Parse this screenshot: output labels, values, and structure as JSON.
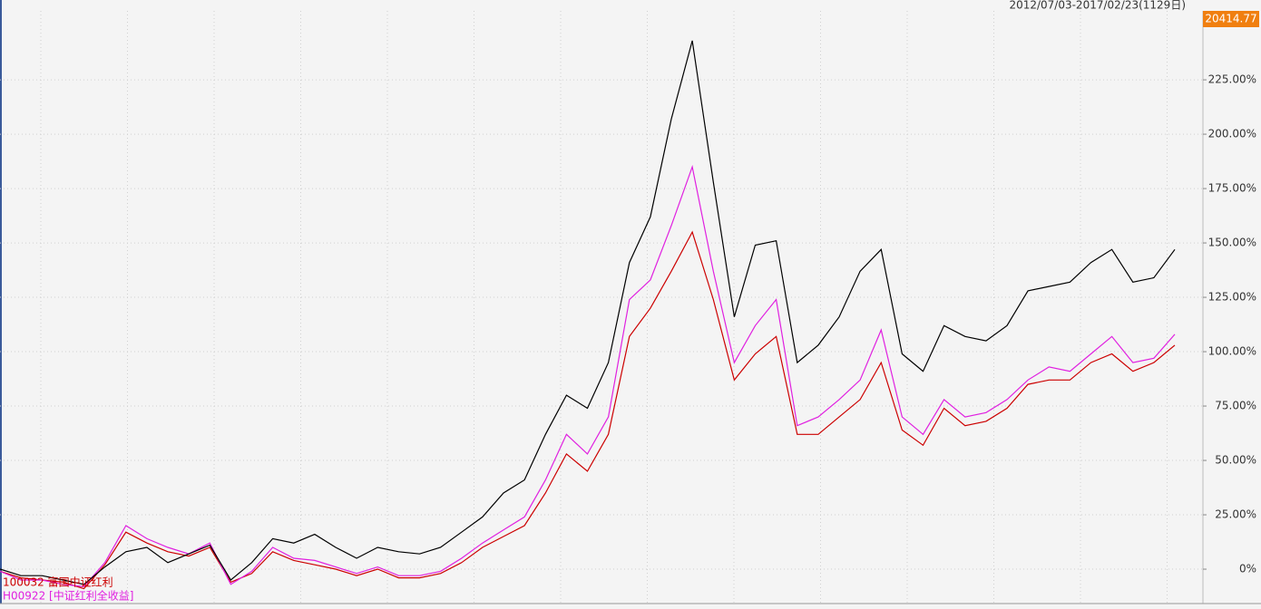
{
  "chart_data": {
    "type": "line",
    "header": "2012/07/03-2017/02/23(1129日)",
    "price_box": "20414.77",
    "ylim": [
      -15.4,
      256.7
    ],
    "yticks": [
      {
        "value": 0,
        "label": "0%"
      },
      {
        "value": 25,
        "label": "25.00%"
      },
      {
        "value": 50,
        "label": "50.00%"
      },
      {
        "value": 75,
        "label": "75.00%"
      },
      {
        "value": 100,
        "label": "100.00%"
      },
      {
        "value": 125,
        "label": "125.00%"
      },
      {
        "value": 150,
        "label": "150.00%"
      },
      {
        "value": 175,
        "label": "175.00%"
      },
      {
        "value": 200,
        "label": "200.00%"
      },
      {
        "value": 225,
        "label": "225.00%"
      }
    ],
    "grid": true,
    "series": [
      {
        "color": "#000000",
        "values": [
          0,
          -3,
          -3,
          -5,
          -7,
          1,
          8,
          10,
          3,
          7,
          11,
          -5,
          3,
          14,
          12,
          16,
          10,
          5,
          10,
          8,
          7,
          10,
          17,
          24,
          35,
          41,
          62,
          80,
          74,
          95,
          141,
          162,
          207,
          243,
          178,
          116,
          149,
          151,
          95,
          103,
          116,
          137,
          147,
          99,
          91,
          112,
          107,
          105,
          112,
          128,
          130,
          132,
          141,
          147,
          132,
          134,
          147
        ]
      },
      {
        "name": "H00922 [中证红利全收益]",
        "color": "#e020e0",
        "values": [
          -1,
          -5,
          -5,
          -7,
          -8,
          3,
          20,
          14,
          10,
          7,
          12,
          -7,
          -1,
          10,
          5,
          4,
          1,
          -2,
          1,
          -3,
          -3,
          -1,
          5,
          12,
          18,
          24,
          41,
          62,
          53,
          70,
          124,
          133,
          158,
          185,
          137,
          95,
          112,
          124,
          66,
          70,
          78,
          87,
          110,
          70,
          62,
          78,
          70,
          72,
          78,
          87,
          93,
          91,
          99,
          107,
          95,
          97,
          108
        ]
      },
      {
        "name": "100032 富国中证红利",
        "color": "#cc0000",
        "values": [
          -1,
          -4,
          -5,
          -6,
          -9,
          2,
          17,
          12,
          8,
          6,
          10,
          -6,
          -2,
          8,
          4,
          2,
          0,
          -3,
          0,
          -4,
          -4,
          -2,
          3,
          10,
          15,
          20,
          35,
          53,
          45,
          62,
          107,
          120,
          137,
          155,
          124,
          87,
          99,
          107,
          62,
          62,
          70,
          78,
          95,
          64,
          57,
          74,
          66,
          68,
          74,
          85,
          87,
          87,
          95,
          99,
          91,
          95,
          103
        ]
      }
    ]
  }
}
